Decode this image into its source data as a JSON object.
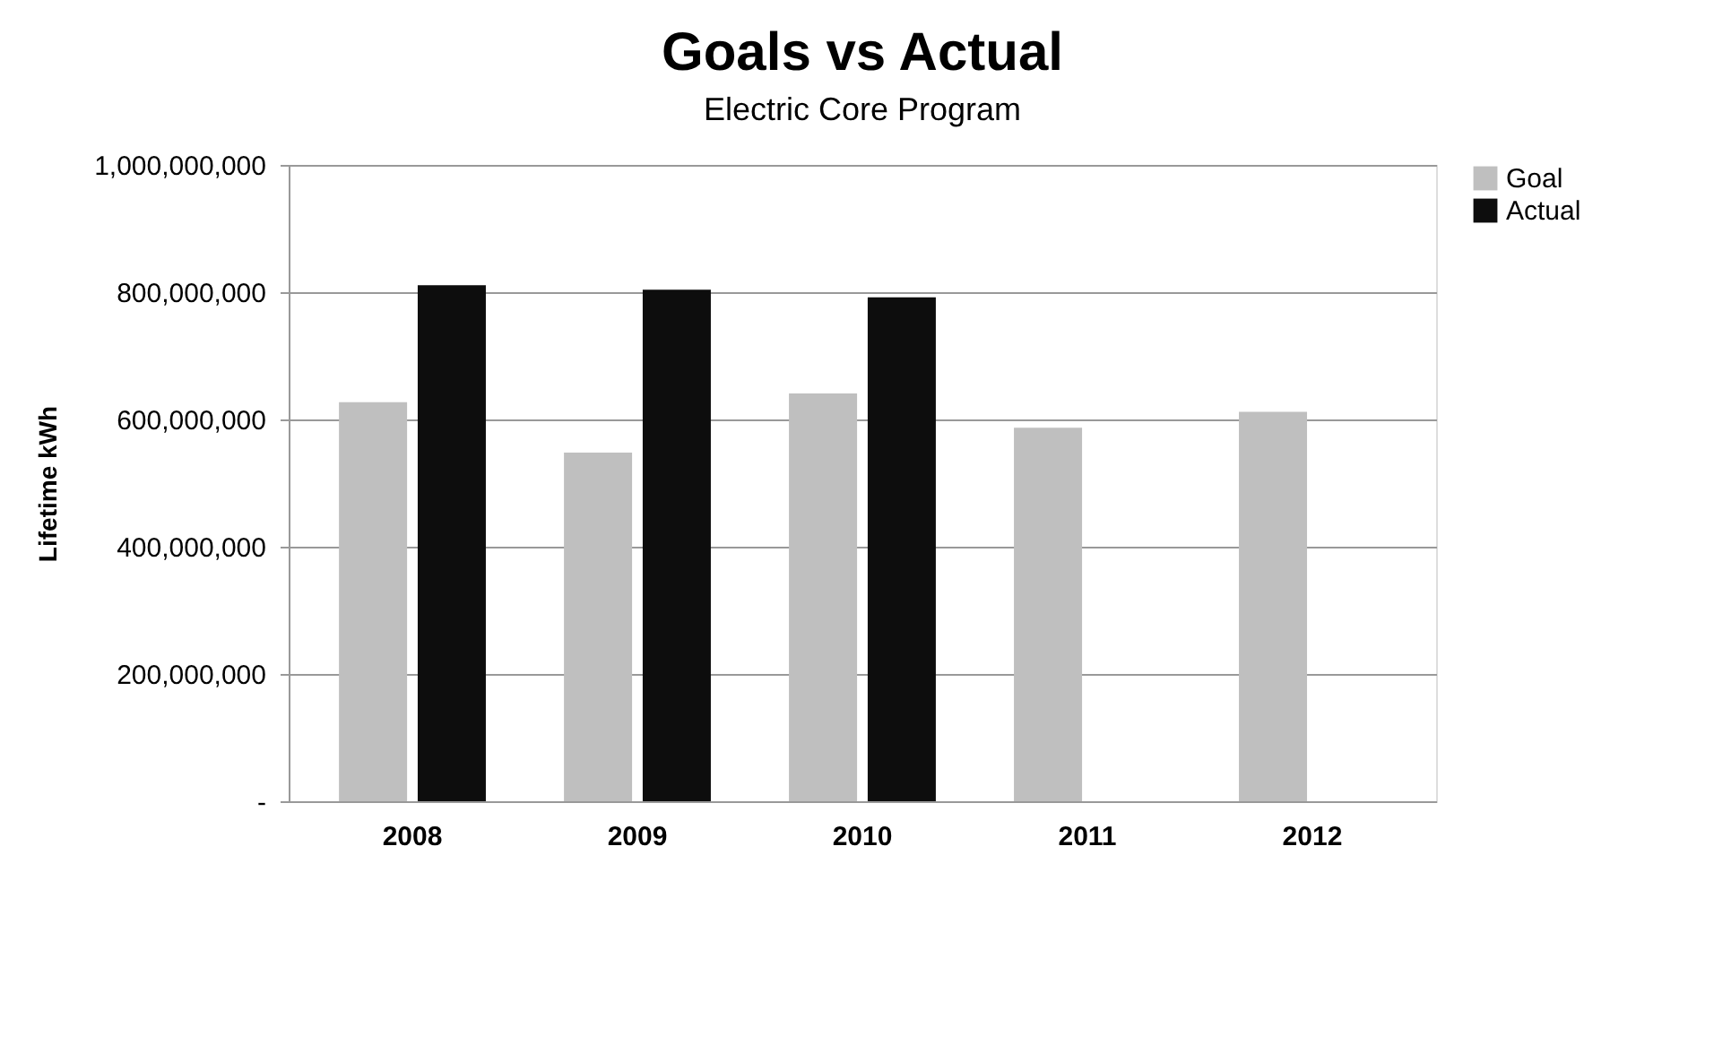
{
  "chart_data": {
    "type": "bar",
    "title": "Goals vs Actual",
    "subtitle": "Electric Core  Program",
    "ylabel": "Lifetime kWh",
    "categories": [
      "2008",
      "2009",
      "2010",
      "2011",
      "2012"
    ],
    "series": [
      {
        "name": "Goal",
        "color": "#bfbfbf",
        "values": [
          627000000,
          548000000,
          641000000,
          587000000,
          612000000
        ]
      },
      {
        "name": "Actual",
        "color": "#0d0d0d",
        "values": [
          811000000,
          804000000,
          792000000,
          null,
          null
        ]
      }
    ],
    "ylim": [
      0,
      1000000000
    ],
    "yticks": [
      {
        "value": 0,
        "label": "-"
      },
      {
        "value": 200000000,
        "label": "200,000,000"
      },
      {
        "value": 400000000,
        "label": "400,000,000"
      },
      {
        "value": 600000000,
        "label": "600,000,000"
      },
      {
        "value": 800000000,
        "label": "800,000,000"
      },
      {
        "value": 1000000000,
        "label": "1,000,000,000"
      }
    ],
    "grid": "y",
    "legend": "right"
  }
}
